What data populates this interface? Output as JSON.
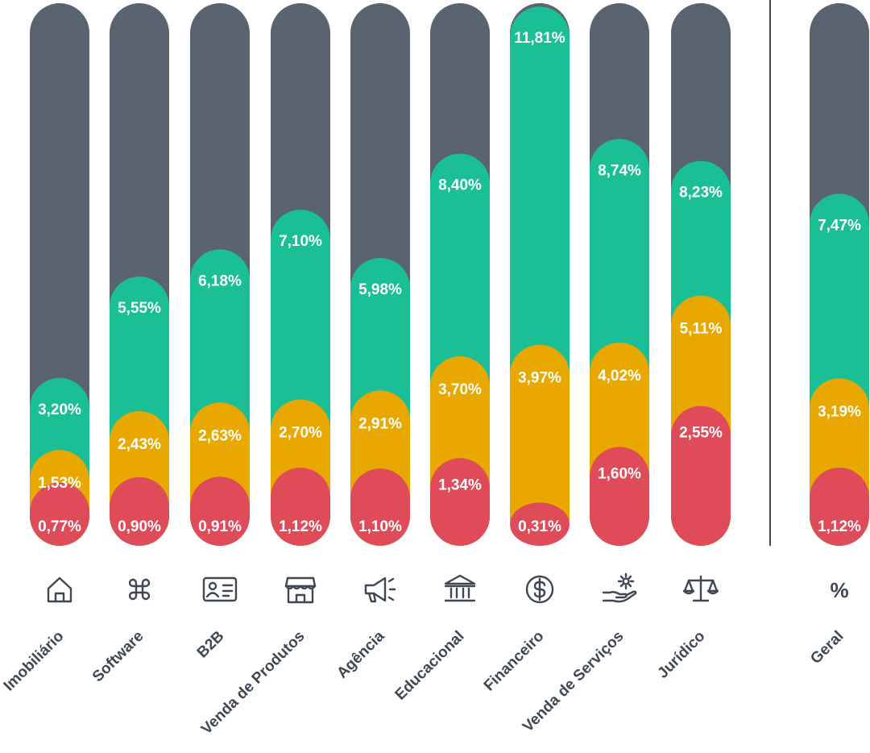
{
  "chart_data": {
    "type": "bar",
    "colors": {
      "background": "#5a6470",
      "green": "#1abf95",
      "yellow": "#e8a800",
      "red": "#e04b5a"
    },
    "ylim": [
      0,
      12.5
    ],
    "categories": [
      {
        "label": "Imobiliário",
        "icon": "house-icon",
        "green": 3.2,
        "yellow": 1.53,
        "red": 0.77,
        "green_label": "3,20%",
        "yellow_label": "1,53%",
        "red_label": "0,77%"
      },
      {
        "label": "Software",
        "icon": "command-icon",
        "green": 5.55,
        "yellow": 2.43,
        "red": 0.9,
        "green_label": "5,55%",
        "yellow_label": "2,43%",
        "red_label": "0,90%"
      },
      {
        "label": "B2B",
        "icon": "id-card-icon",
        "green": 6.18,
        "yellow": 2.63,
        "red": 0.91,
        "green_label": "6,18%",
        "yellow_label": "2,63%",
        "red_label": "0,91%"
      },
      {
        "label": "Venda de Produtos",
        "icon": "store-icon",
        "green": 7.1,
        "yellow": 2.7,
        "red": 1.12,
        "green_label": "7,10%",
        "yellow_label": "2,70%",
        "red_label": "1,12%"
      },
      {
        "label": "Agência",
        "icon": "megaphone-icon",
        "green": 5.98,
        "yellow": 2.91,
        "red": 1.1,
        "green_label": "5,98%",
        "yellow_label": "2,91%",
        "red_label": "1,10%"
      },
      {
        "label": "Educacional",
        "icon": "institution-icon",
        "green": 8.4,
        "yellow": 3.7,
        "red": 1.34,
        "green_label": "8,40%",
        "yellow_label": "3,70%",
        "red_label": "1,34%"
      },
      {
        "label": "Financeiro",
        "icon": "dollar-icon",
        "green": 11.81,
        "yellow": 3.97,
        "red": 0.31,
        "green_label": "11,81%",
        "yellow_label": "3,97%",
        "red_label": "0,31%"
      },
      {
        "label": "Venda de Serviços",
        "icon": "hand-service-icon",
        "green": 8.74,
        "yellow": 4.02,
        "red": 1.6,
        "green_label": "8,74%",
        "yellow_label": "4,02%",
        "red_label": "1,60%"
      },
      {
        "label": "Jurídico",
        "icon": "scales-icon",
        "green": 8.23,
        "yellow": 5.11,
        "red": 2.55,
        "green_label": "8,23%",
        "yellow_label": "5,11%",
        "red_label": "2,55%"
      },
      {
        "label": "Geral",
        "icon": "percent-icon",
        "icon_text": "%",
        "green": 7.47,
        "yellow": 3.19,
        "red": 1.12,
        "green_label": "7,47%",
        "yellow_label": "3,19%",
        "red_label": "1,12%"
      }
    ]
  }
}
